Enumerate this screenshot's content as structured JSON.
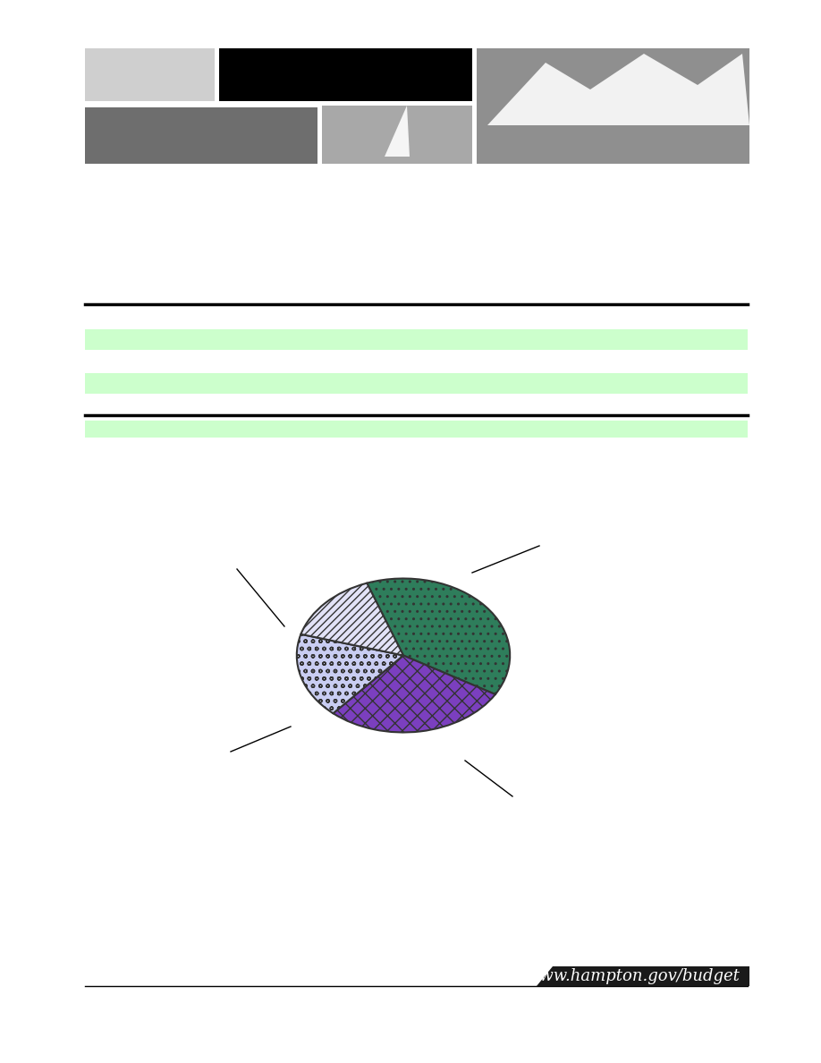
{
  "footer": {
    "url": "www.hampton.gov/budget"
  },
  "chart_data": {
    "type": "pie",
    "values": [
      39,
      28,
      18,
      15
    ],
    "colors": [
      "#2e7d5b",
      "#7b3fbf",
      "#c9cdf2",
      "#e2e2f7"
    ]
  }
}
